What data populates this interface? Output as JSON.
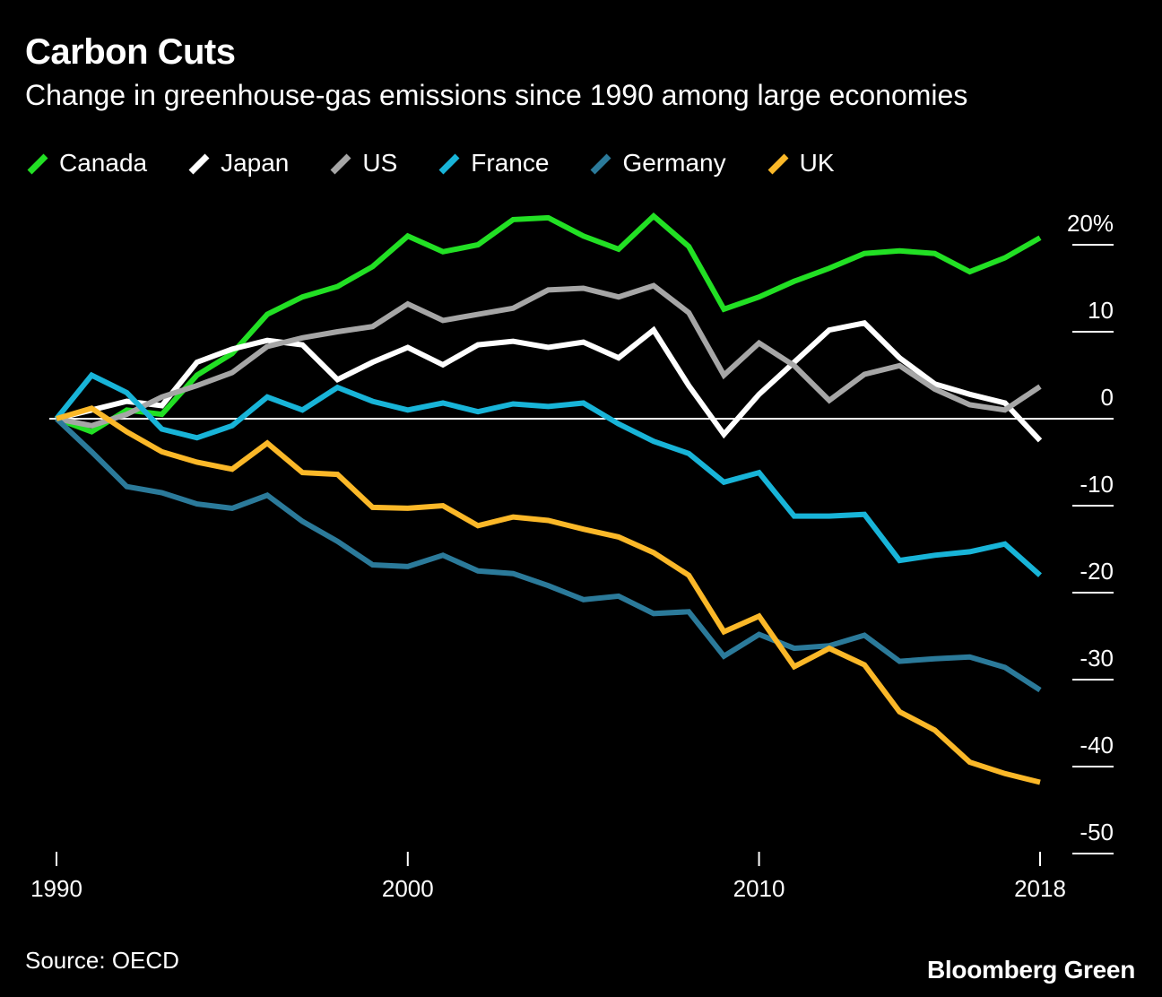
{
  "title": "Carbon Cuts",
  "subtitle": "Change in greenhouse-gas emissions since 1990 among large economies",
  "source": "Source: OECD",
  "brand": "Bloomberg Green",
  "chart_data": {
    "type": "line",
    "title": "Carbon Cuts",
    "subtitle": "Change in greenhouse-gas emissions since 1990 among large economies",
    "x": [
      1990,
      1991,
      1992,
      1993,
      1994,
      1995,
      1996,
      1997,
      1998,
      1999,
      2000,
      2001,
      2002,
      2003,
      2004,
      2005,
      2006,
      2007,
      2008,
      2009,
      2010,
      2011,
      2012,
      2013,
      2014,
      2015,
      2016,
      2017,
      2018
    ],
    "x_ticks": [
      1990,
      2000,
      2010,
      2018
    ],
    "x_tick_labels": [
      "1990",
      "2000",
      "2010",
      "2018"
    ],
    "xlim": [
      1990,
      2018
    ],
    "ylim": [
      -50,
      20
    ],
    "y_ticks": [
      20,
      10,
      0,
      -10,
      -20,
      -30,
      -40,
      -50
    ],
    "y_tick_labels": [
      "20%",
      "10",
      "0",
      "-10",
      "-20",
      "-30",
      "-40",
      "-50"
    ],
    "y_axis_position": "right",
    "zero_line": true,
    "grid": false,
    "legend": "top",
    "series": [
      {
        "name": "Canada",
        "color": "#22e024",
        "values": [
          0.0,
          -1.5,
          1.0,
          0.5,
          5.0,
          7.5,
          12.0,
          14.0,
          15.2,
          17.5,
          21.0,
          19.2,
          20.0,
          22.9,
          23.1,
          21.0,
          19.5,
          23.3,
          19.8,
          12.6,
          14.0,
          15.8,
          17.3,
          19.0,
          19.3,
          19.0,
          16.9,
          18.5,
          20.8
        ]
      },
      {
        "name": "Japan",
        "color": "#ffffff",
        "values": [
          0.0,
          1.0,
          2.0,
          1.5,
          6.5,
          8.0,
          9.0,
          8.5,
          4.5,
          6.5,
          8.2,
          6.2,
          8.5,
          8.9,
          8.2,
          8.8,
          7.0,
          10.2,
          3.8,
          -1.8,
          2.8,
          6.5,
          10.2,
          11.0,
          7.0,
          4.0,
          2.8,
          1.8,
          -2.5
        ]
      },
      {
        "name": "US",
        "color": "#a6a6a6",
        "values": [
          0.0,
          -0.8,
          0.5,
          2.5,
          3.8,
          5.3,
          8.3,
          9.3,
          10.0,
          10.6,
          13.2,
          11.3,
          12.0,
          12.7,
          14.8,
          15.0,
          14.0,
          15.3,
          12.2,
          5.0,
          8.7,
          6.1,
          2.1,
          5.1,
          6.1,
          3.4,
          1.6,
          1.0,
          3.7
        ]
      },
      {
        "name": "France",
        "color": "#18b4d8",
        "values": [
          0.0,
          5.0,
          3.0,
          -1.2,
          -2.2,
          -0.8,
          2.5,
          1.0,
          3.6,
          2.0,
          1.0,
          1.8,
          0.8,
          1.7,
          1.4,
          1.8,
          -0.6,
          -2.6,
          -4.0,
          -7.3,
          -6.2,
          -11.2,
          -11.2,
          -11.0,
          -16.3,
          -15.7,
          -15.3,
          -14.4,
          -18.0
        ]
      },
      {
        "name": "Germany",
        "color": "#2b7a9a",
        "values": [
          0.0,
          -3.8,
          -7.8,
          -8.5,
          -9.8,
          -10.3,
          -8.8,
          -11.8,
          -14.1,
          -16.8,
          -17.0,
          -15.7,
          -17.5,
          -17.8,
          -19.2,
          -20.8,
          -20.4,
          -22.4,
          -22.2,
          -27.3,
          -24.8,
          -26.4,
          -26.1,
          -24.9,
          -27.9,
          -27.6,
          -27.4,
          -28.6,
          -31.2
        ]
      },
      {
        "name": "UK",
        "color": "#fbb828",
        "values": [
          0.0,
          1.2,
          -1.5,
          -3.8,
          -5.0,
          -5.8,
          -2.8,
          -6.2,
          -6.4,
          -10.2,
          -10.3,
          -10.0,
          -12.3,
          -11.3,
          -11.7,
          -12.7,
          -13.6,
          -15.4,
          -18.0,
          -24.5,
          -22.7,
          -28.5,
          -26.4,
          -28.3,
          -33.7,
          -35.8,
          -39.5,
          -40.8,
          -41.8
        ]
      }
    ]
  }
}
